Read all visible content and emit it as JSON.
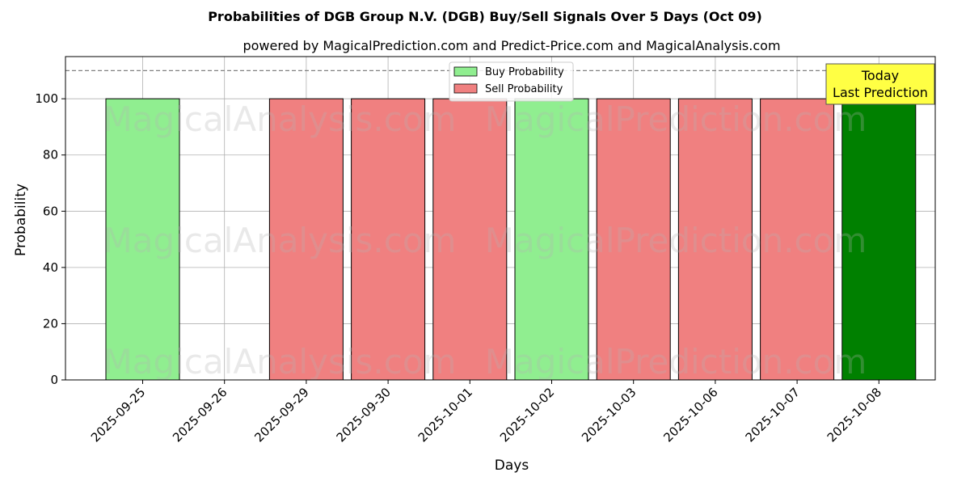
{
  "chart_data": {
    "type": "bar",
    "title": "Probabilities of DGB Group N.V. (DGB) Buy/Sell Signals Over 5 Days (Oct 09)",
    "subtitle": "powered by MagicalPrediction.com and Predict-Price.com and MagicalAnalysis.com",
    "xlabel": "Days",
    "ylabel": "Probability",
    "ylim": [
      0,
      115
    ],
    "yticks": [
      0,
      20,
      40,
      60,
      80,
      100
    ],
    "reference_line": 110,
    "grid": true,
    "legend_position": "top-center",
    "categories": [
      "2025-09-25",
      "2025-09-26",
      "2025-09-29",
      "2025-09-30",
      "2025-10-01",
      "2025-10-02",
      "2025-10-03",
      "2025-10-06",
      "2025-10-07",
      "2025-10-08"
    ],
    "series": [
      {
        "name": "Buy Probability",
        "color": "#90ee90",
        "values": [
          100,
          0,
          0,
          0,
          0,
          100,
          0,
          0,
          0,
          100
        ]
      },
      {
        "name": "Sell Probability",
        "color": "#f08080",
        "values": [
          0,
          0,
          100,
          100,
          100,
          0,
          100,
          100,
          100,
          0
        ]
      }
    ],
    "highlight": {
      "category": "2025-10-08",
      "color": "#008000"
    },
    "annotation": {
      "line1": "Today",
      "line2": "Last Prediction",
      "color": "#ffff44"
    },
    "watermarks": [
      "MagicalAnalysis.com",
      "MagicalPrediction.com"
    ]
  }
}
